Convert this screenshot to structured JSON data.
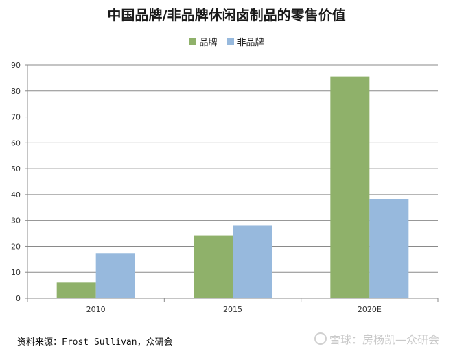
{
  "chart_data": {
    "type": "bar",
    "title": "中国品牌/非品牌休闲卤制品的零售价值",
    "categories": [
      "2010",
      "2015",
      "2020E"
    ],
    "series": [
      {
        "name": "品牌",
        "values": [
          6,
          24.2,
          85.6
        ],
        "color": "#8fb16a"
      },
      {
        "name": "非品牌",
        "values": [
          17.4,
          28.2,
          38.2
        ],
        "color": "#97b9dd"
      }
    ],
    "ylim": [
      0,
      90
    ],
    "yticks": [
      0,
      10,
      20,
      30,
      40,
      50,
      60,
      70,
      80,
      90
    ],
    "xlabel": "",
    "ylabel": "",
    "grid": true,
    "legend_position": "top-center"
  },
  "footer": {
    "source": "资料来源：Frost Sullivan，众研会",
    "watermark": "雪球：房杨凯—众研会"
  }
}
